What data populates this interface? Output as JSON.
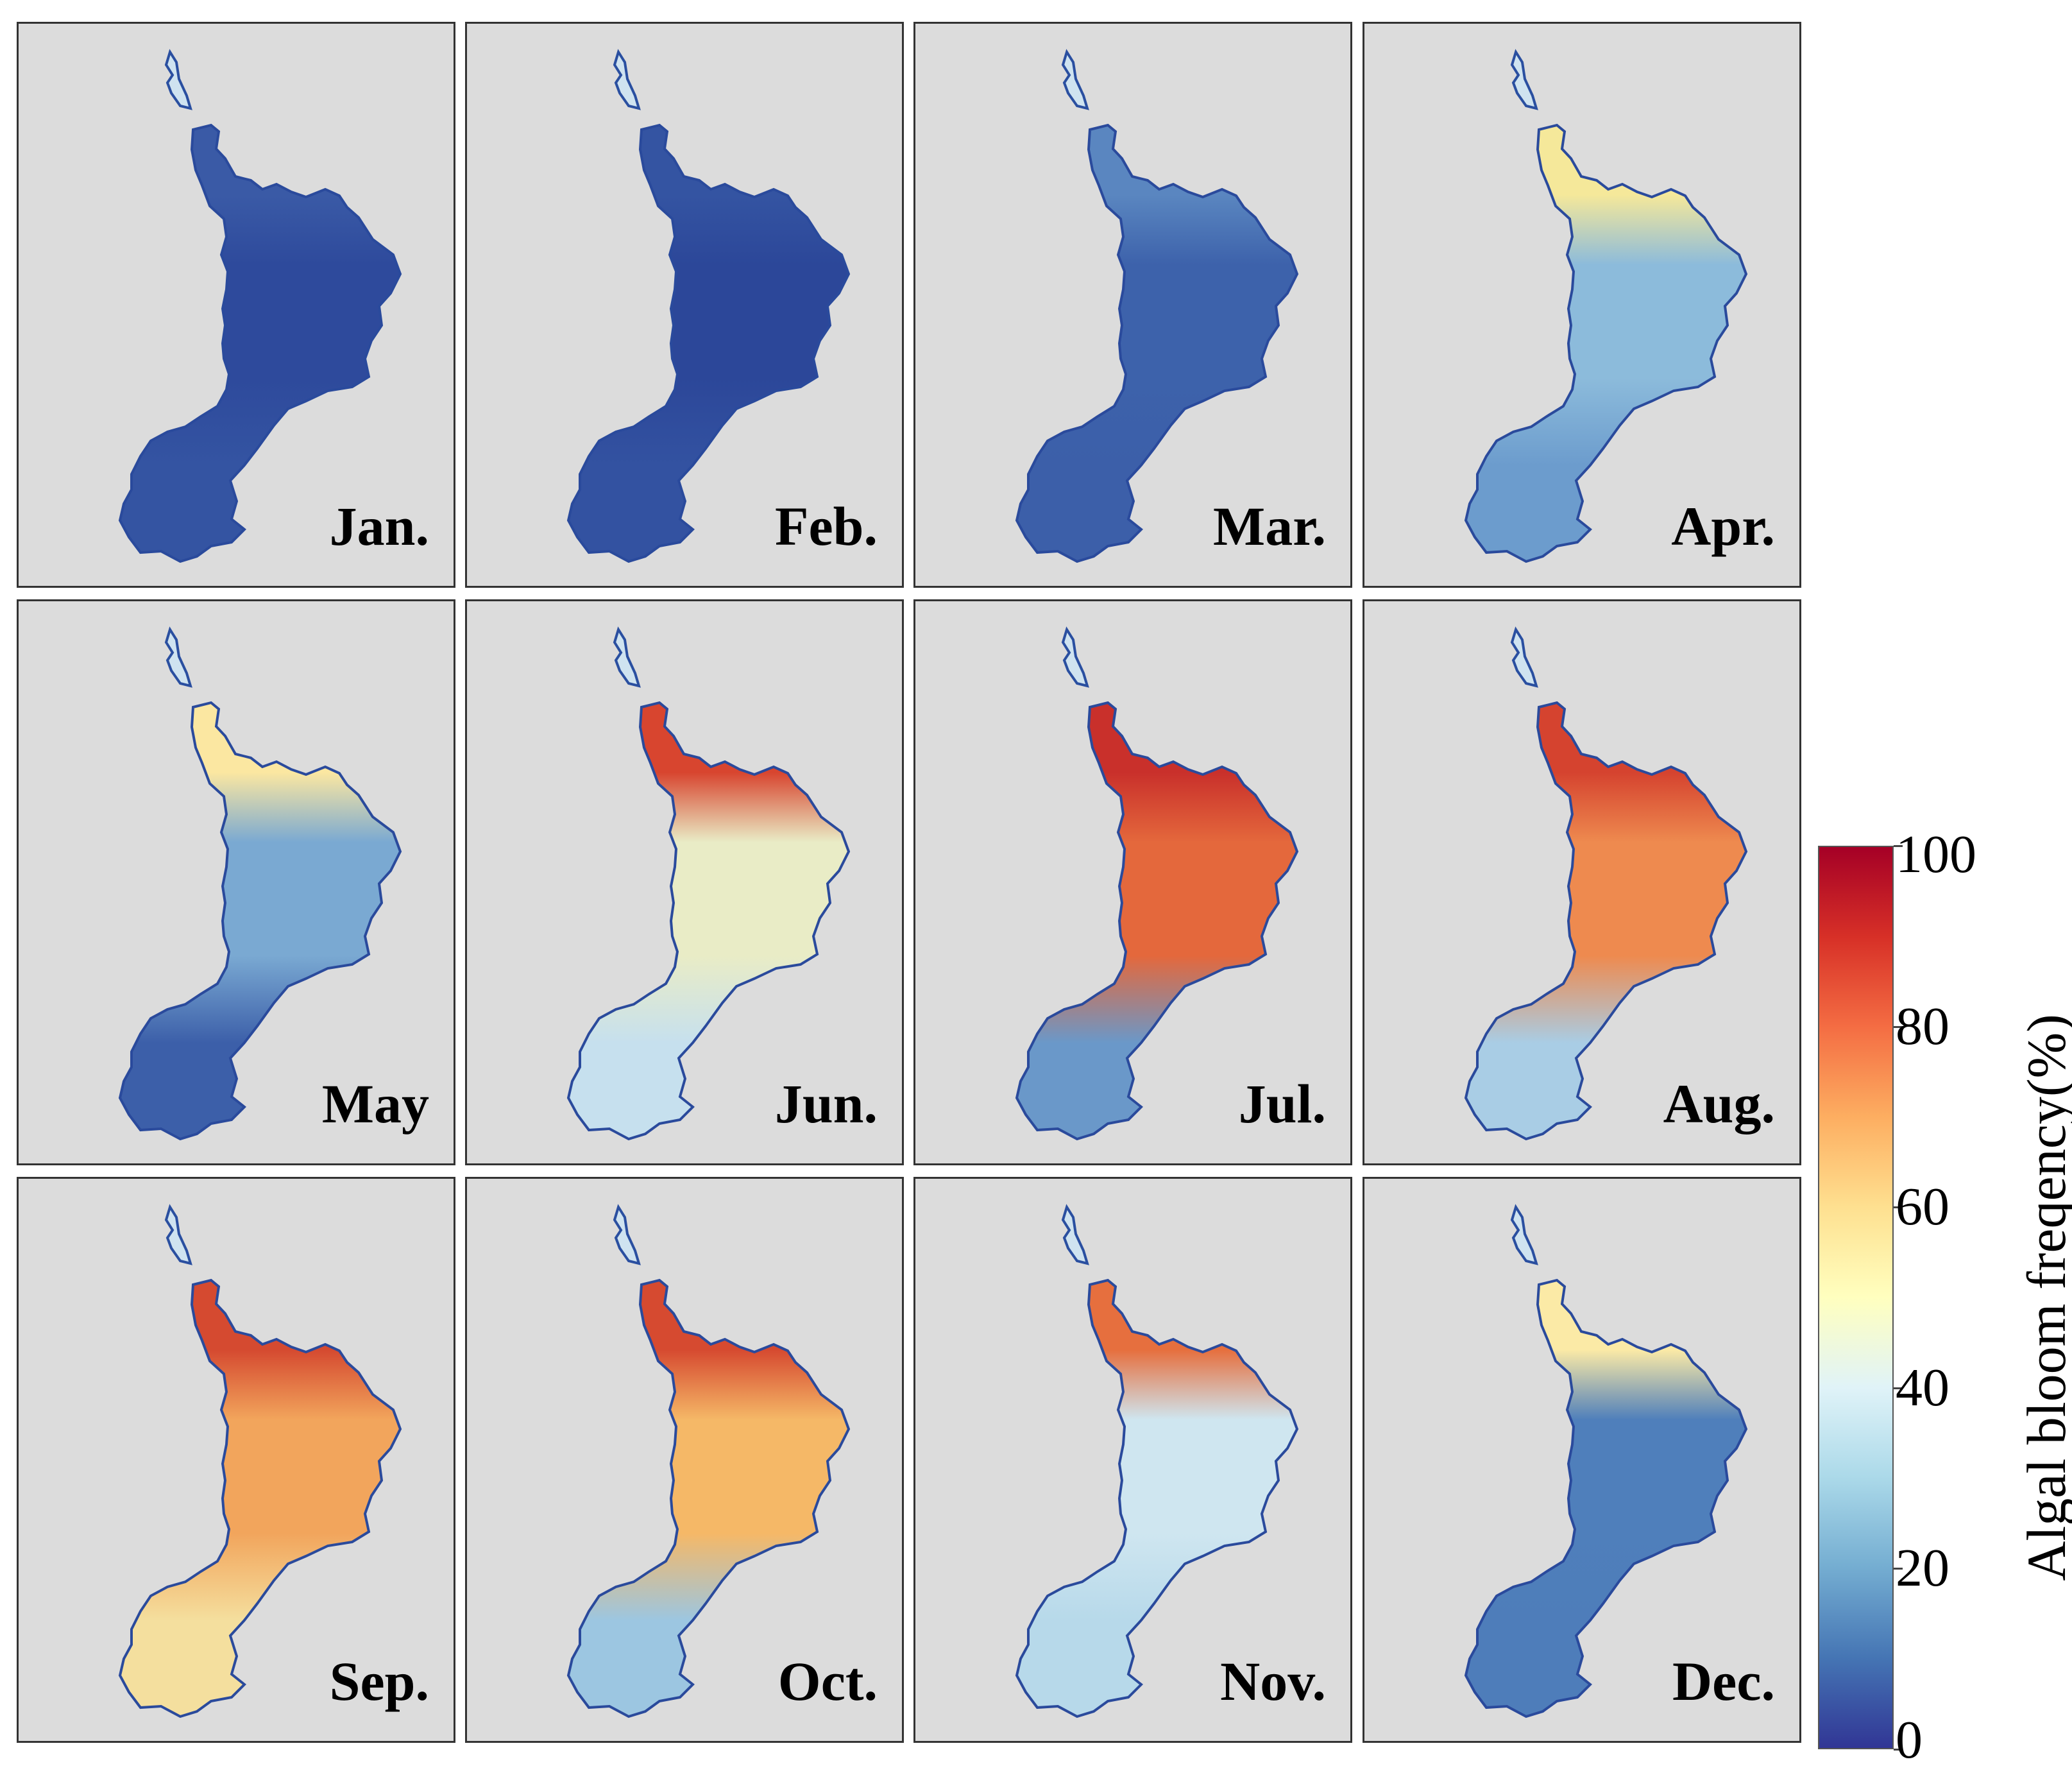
{
  "panels": [
    {
      "month": "Jan.",
      "colors": {
        "north": "#3a5aa6",
        "center": "#2e4a9c",
        "south": "#3454a2"
      }
    },
    {
      "month": "Feb.",
      "colors": {
        "north": "#3454a2",
        "center": "#2c4799",
        "south": "#3352a1"
      }
    },
    {
      "month": "Mar.",
      "colors": {
        "north": "#5a86c0",
        "center": "#3d62ab",
        "south": "#3c5fa9"
      }
    },
    {
      "month": "Apr.",
      "colors": {
        "north": "#f5e89a",
        "center": "#8cbbdb",
        "south": "#6c9ccd"
      }
    },
    {
      "month": "May",
      "colors": {
        "north": "#fbe7a1",
        "center": "#7aa9d2",
        "south": "#3c5fa9"
      }
    },
    {
      "month": "Jun.",
      "colors": {
        "north": "#d8452f",
        "center": "#e9ecc6",
        "south": "#c6e0ee"
      }
    },
    {
      "month": "Jul.",
      "colors": {
        "north": "#c9302b",
        "center": "#e4683c",
        "south": "#6a98c9"
      }
    },
    {
      "month": "Aug.",
      "colors": {
        "north": "#d5432f",
        "center": "#ee8a4f",
        "south": "#a9cde5"
      }
    },
    {
      "month": "Sep.",
      "colors": {
        "north": "#d54a30",
        "center": "#f2a55c",
        "south": "#f4df9e"
      }
    },
    {
      "month": "Oct.",
      "colors": {
        "north": "#d64a30",
        "center": "#f5b867",
        "south": "#9cc6e1"
      }
    },
    {
      "month": "Nov.",
      "colors": {
        "north": "#e66f3e",
        "center": "#cfe6f0",
        "south": "#b7d9ea"
      }
    },
    {
      "month": "Dec.",
      "colors": {
        "north": "#fbeaa6",
        "center": "#4f7fbb",
        "south": "#4e7dba"
      }
    }
  ],
  "colorbar": {
    "title": "Algal bloom freqency(%)",
    "ticks": [
      "0",
      "20",
      "40",
      "60",
      "80",
      "100"
    ],
    "range": [
      0,
      100
    ],
    "colormap": "RdYlBu_r",
    "stops": [
      "#313695",
      "#4575b4",
      "#74add1",
      "#abd9e9",
      "#e0f3f8",
      "#ffffbf",
      "#fee090",
      "#fdae61",
      "#f46d43",
      "#d73027",
      "#a50026"
    ]
  }
}
